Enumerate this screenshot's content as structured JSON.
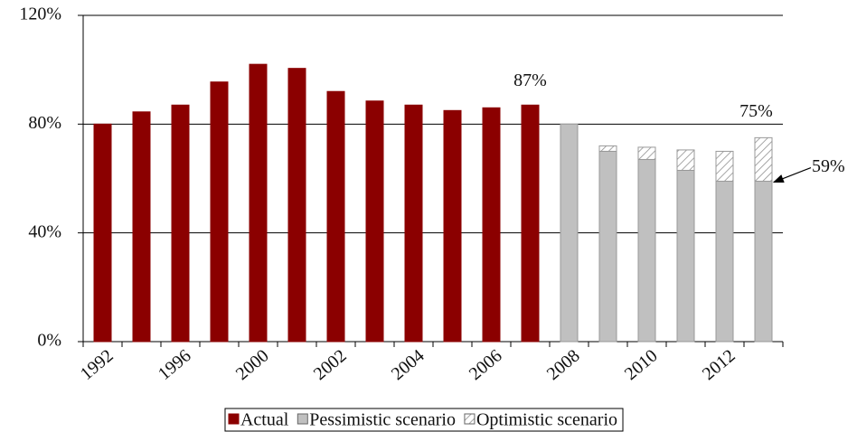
{
  "chart_data": {
    "type": "bar",
    "stacked": true,
    "categories": [
      "1992",
      null,
      "1996",
      null,
      "2000",
      null,
      "2002",
      null,
      "2004",
      null,
      "2006",
      null,
      "2008",
      null,
      "2010",
      null,
      "2012",
      null
    ],
    "series": [
      {
        "name": "Actual",
        "color": "#8b0000",
        "values": [
          80,
          84.5,
          87,
          95.5,
          102,
          100.5,
          92,
          88.5,
          87,
          85,
          86,
          87,
          null,
          null,
          null,
          null,
          null,
          null
        ]
      },
      {
        "name": "Pessimistic scenario",
        "color": "#c0c0c0",
        "values": [
          null,
          null,
          null,
          null,
          null,
          null,
          null,
          null,
          null,
          null,
          null,
          null,
          80,
          70,
          67,
          63,
          59,
          59
        ]
      },
      {
        "name": "Optimistic scenario",
        "color": "#ffffff",
        "hatch": true,
        "values": [
          null,
          null,
          null,
          null,
          null,
          null,
          null,
          null,
          null,
          null,
          null,
          null,
          null,
          2,
          4.5,
          7.5,
          11,
          16
        ]
      }
    ],
    "annotations": [
      "87%",
      "75%",
      "59%"
    ],
    "ylim": [
      0,
      120
    ],
    "yticks": [
      {
        "value": 0,
        "label": "0%"
      },
      {
        "value": 40,
        "label": "40%"
      },
      {
        "value": 80,
        "label": "80%"
      },
      {
        "value": 120,
        "label": "120%"
      }
    ],
    "grid": true,
    "legend": "bottom"
  }
}
